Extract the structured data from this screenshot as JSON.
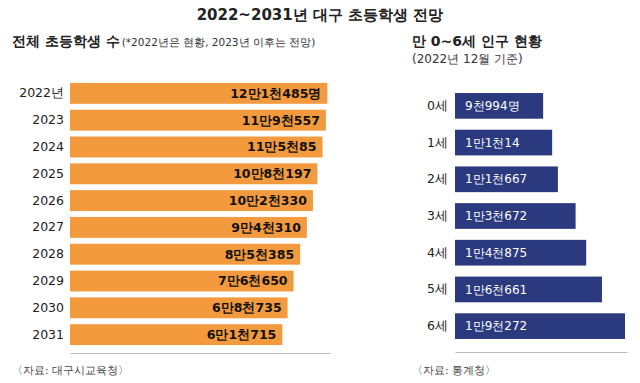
{
  "title": "2022~2031년 대구 초등학생 전망",
  "chart_data": [
    {
      "type": "bar",
      "orientation": "horizontal",
      "title": "전체 초등학생 수",
      "subtitle": "(*2022년은 현황, 2023년 이후는 전망)",
      "source": "〈자료: 대구시교육청〉",
      "categories": [
        "2022년",
        "2023",
        "2024",
        "2025",
        "2026",
        "2027",
        "2028",
        "2029",
        "2030",
        "2031"
      ],
      "values": [
        121485,
        119557,
        115085,
        108197,
        102330,
        94310,
        85385,
        76650,
        68735,
        61715
      ],
      "value_labels": [
        "12만1천485명",
        "11만9천557",
        "11만5천85",
        "10만8천197",
        "10만2천330",
        "9만4천310",
        "8만5천385",
        "7만6천650",
        "6만8천735",
        "6만1천715"
      ],
      "color": "#f39a3f",
      "xlim": [
        -220000,
        125000
      ],
      "data_labels": true,
      "tick_labels": "y"
    },
    {
      "type": "bar",
      "orientation": "horizontal",
      "title": "만 0~6세 인구 현황",
      "subtitle": "(2022년 12월 기준)",
      "source": "〈자료: 통계청〉",
      "categories": [
        "0세",
        "1세",
        "2세",
        "3세",
        "4세",
        "5세",
        "6세"
      ],
      "values": [
        9994,
        11014,
        11667,
        13672,
        14875,
        16661,
        19272
      ],
      "value_labels": [
        "9천994명",
        "1만1천14",
        "1만1천667",
        "1만3천672",
        "1만4천875",
        "1만6천661",
        "1만9천272"
      ],
      "color": "#2b3a7e",
      "xlim": [
        0,
        19500
      ],
      "data_labels": true,
      "tick_labels": "y"
    }
  ]
}
